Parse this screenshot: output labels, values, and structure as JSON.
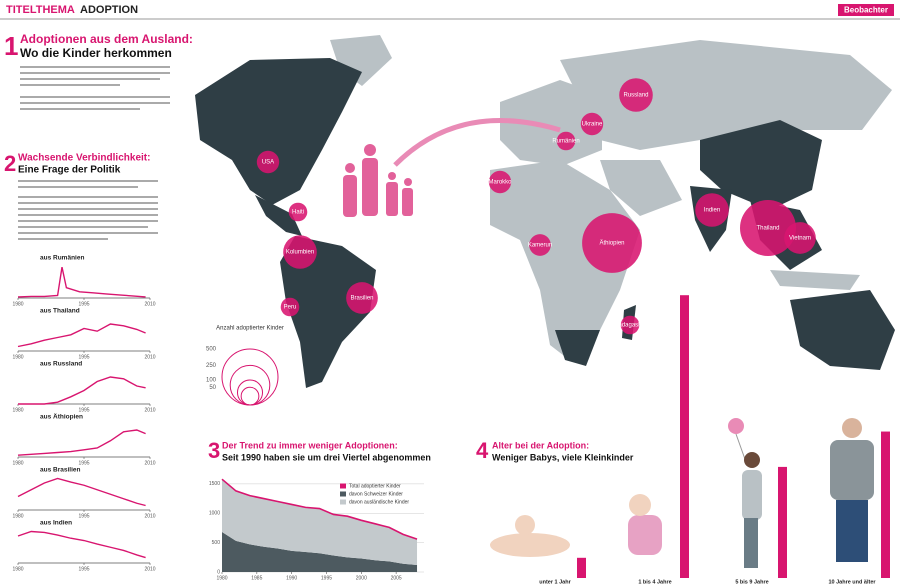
{
  "header": {
    "section": "TITELTHEMA",
    "topic": "ADOPTION",
    "brand": "Beobachter"
  },
  "part1": {
    "number": "1",
    "title": "Adoptionen aus dem Ausland:",
    "subtitle": "Wo die Kinder herkommen"
  },
  "part2": {
    "number": "2",
    "title": "Wachsende Verbindlichkeit:",
    "subtitle": "Eine Frage der Politik"
  },
  "chart_data": [
    {
      "type": "bubble",
      "title": "Anzahl adoptierter Kinder",
      "categories": [
        "USA",
        "Haiti",
        "Kolumbien",
        "Brasilien",
        "Peru",
        "Russland",
        "Ukraine",
        "Rumänien",
        "Marokko",
        "Kamerun",
        "Äthiopien",
        "Indien",
        "Thailand",
        "Vietnam",
        "Madagaskar"
      ],
      "values": [
        80,
        55,
        180,
        160,
        55,
        180,
        80,
        55,
        80,
        75,
        570,
        180,
        500,
        160,
        55
      ],
      "color": "#d8156f",
      "legend_values": [
        500,
        250,
        100,
        50
      ]
    },
    {
      "type": "line",
      "title": "aus Rumänien",
      "x": [
        1980,
        1983,
        1986,
        1989,
        1990,
        1991,
        1994,
        1997,
        2000,
        2003,
        2006,
        2009
      ],
      "values": [
        2,
        3,
        3,
        5,
        60,
        20,
        12,
        10,
        8,
        6,
        4,
        2
      ],
      "ylim": [
        0,
        70
      ],
      "xlim": [
        1980,
        2010
      ],
      "xticks": [
        1980,
        1995,
        2010
      ],
      "color": "#d8156f"
    },
    {
      "type": "line",
      "title": "aus Thailand",
      "x": [
        1980,
        1983,
        1986,
        1989,
        1992,
        1995,
        1998,
        2001,
        2004,
        2007,
        2009
      ],
      "values": [
        5,
        8,
        12,
        15,
        18,
        25,
        22,
        30,
        28,
        24,
        20
      ],
      "ylim": [
        0,
        40
      ],
      "xlim": [
        1980,
        2010
      ],
      "xticks": [
        1980,
        1995,
        2010
      ],
      "color": "#d8156f"
    },
    {
      "type": "line",
      "title": "aus Russland",
      "x": [
        1980,
        1983,
        1986,
        1989,
        1992,
        1995,
        1998,
        2001,
        2004,
        2007,
        2009
      ],
      "values": [
        0,
        0,
        0,
        2,
        8,
        15,
        25,
        30,
        28,
        20,
        18
      ],
      "ylim": [
        0,
        40
      ],
      "xlim": [
        1980,
        2010
      ],
      "xticks": [
        1980,
        1995,
        2010
      ],
      "color": "#d8156f"
    },
    {
      "type": "line",
      "title": "aus Äthiopien",
      "x": [
        1980,
        1983,
        1986,
        1989,
        1992,
        1995,
        1998,
        2001,
        2004,
        2007,
        2009
      ],
      "values": [
        2,
        3,
        4,
        5,
        6,
        8,
        10,
        18,
        28,
        30,
        26
      ],
      "ylim": [
        0,
        40
      ],
      "xlim": [
        1980,
        2010
      ],
      "xticks": [
        1980,
        1995,
        2010
      ],
      "color": "#d8156f"
    },
    {
      "type": "line",
      "title": "aus Brasilien",
      "x": [
        1980,
        1983,
        1986,
        1989,
        1992,
        1995,
        1998,
        2001,
        2004,
        2007,
        2009
      ],
      "values": [
        30,
        45,
        60,
        70,
        62,
        55,
        45,
        35,
        25,
        15,
        10
      ],
      "ylim": [
        0,
        80
      ],
      "xlim": [
        1980,
        2010
      ],
      "xticks": [
        1980,
        1995,
        2010
      ],
      "color": "#d8156f"
    },
    {
      "type": "line",
      "title": "aus Indien",
      "x": [
        1980,
        1983,
        1986,
        1989,
        1992,
        1995,
        1998,
        2001,
        2004,
        2007,
        2009
      ],
      "values": [
        60,
        70,
        68,
        62,
        55,
        50,
        42,
        35,
        28,
        18,
        12
      ],
      "ylim": [
        0,
        80
      ],
      "xlim": [
        1980,
        2010
      ],
      "xticks": [
        1980,
        1995,
        2010
      ],
      "color": "#d8156f"
    },
    {
      "type": "stacked-area",
      "number": "3",
      "title": "Der Trend zu immer weniger Adoptionen:",
      "subtitle": "Seit 1990 haben sie um drei Viertel abgenommen",
      "x": [
        1980,
        1982,
        1984,
        1986,
        1988,
        1990,
        1992,
        1994,
        1996,
        1998,
        2000,
        2002,
        2004,
        2006,
        2008
      ],
      "series": [
        {
          "name": "davon Schweizer Kinder",
          "color": "#4d5a60",
          "values": [
            680,
            530,
            470,
            430,
            400,
            360,
            340,
            320,
            280,
            250,
            230,
            200,
            180,
            140,
            120
          ]
        },
        {
          "name": "davon ausländische Kinder",
          "color": "#c3c9cc",
          "values": [
            900,
            850,
            830,
            820,
            800,
            790,
            760,
            760,
            700,
            700,
            650,
            620,
            580,
            500,
            440
          ]
        }
      ],
      "total_name": "Total adoptierter Kinder",
      "total_color": "#d8156f",
      "xlim": [
        1980,
        2009
      ],
      "xticks": [
        1980,
        1985,
        1990,
        1995,
        2000,
        2005
      ],
      "ylim": [
        0,
        1600
      ],
      "yticks": [
        0,
        500,
        1000,
        1500
      ]
    },
    {
      "type": "bar",
      "number": "4",
      "title": "Alter bei der Adoption:",
      "subtitle": "Weniger Babys, viele Kleinkinder",
      "categories": [
        "unter 1 Jahr",
        "1 bis 4 Jahre",
        "5 bis 9 Jahre",
        "10 Jahre und älter"
      ],
      "values": [
        4,
        56,
        22,
        29
      ],
      "ylim": [
        0,
        60
      ],
      "color": "#d8156f"
    }
  ]
}
